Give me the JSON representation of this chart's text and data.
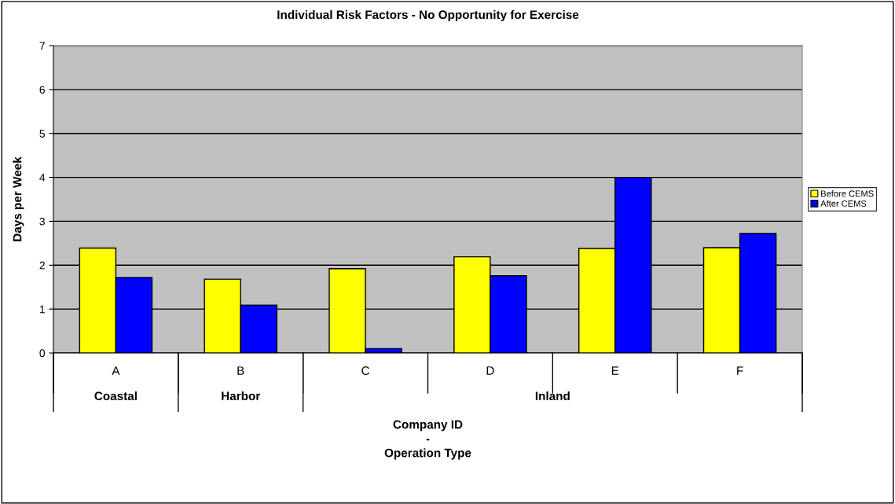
{
  "chart_data": {
    "type": "bar",
    "title": "Individual Risk Factors - No Opportunity for Exercise",
    "xlabel": "Company ID\n-\nOperation Type",
    "ylabel": "Days per Week",
    "categories": [
      "A",
      "B",
      "C",
      "D",
      "E",
      "F"
    ],
    "series": [
      {
        "name": "Before CEMS",
        "color": "#ffff00",
        "values": [
          2.39,
          1.68,
          1.92,
          2.19,
          2.38,
          2.4
        ]
      },
      {
        "name": "After CEMS",
        "color": "#0000ff",
        "values": [
          1.72,
          1.09,
          0.1,
          1.76,
          4.0,
          2.72
        ]
      }
    ],
    "annotations": [
      "Coastal",
      "Harbor",
      "Inland"
    ],
    "ylim": [
      0,
      7
    ],
    "yticks": [
      0,
      1,
      2,
      3,
      4,
      5,
      6,
      7
    ],
    "grid": "y",
    "legend": "right"
  }
}
